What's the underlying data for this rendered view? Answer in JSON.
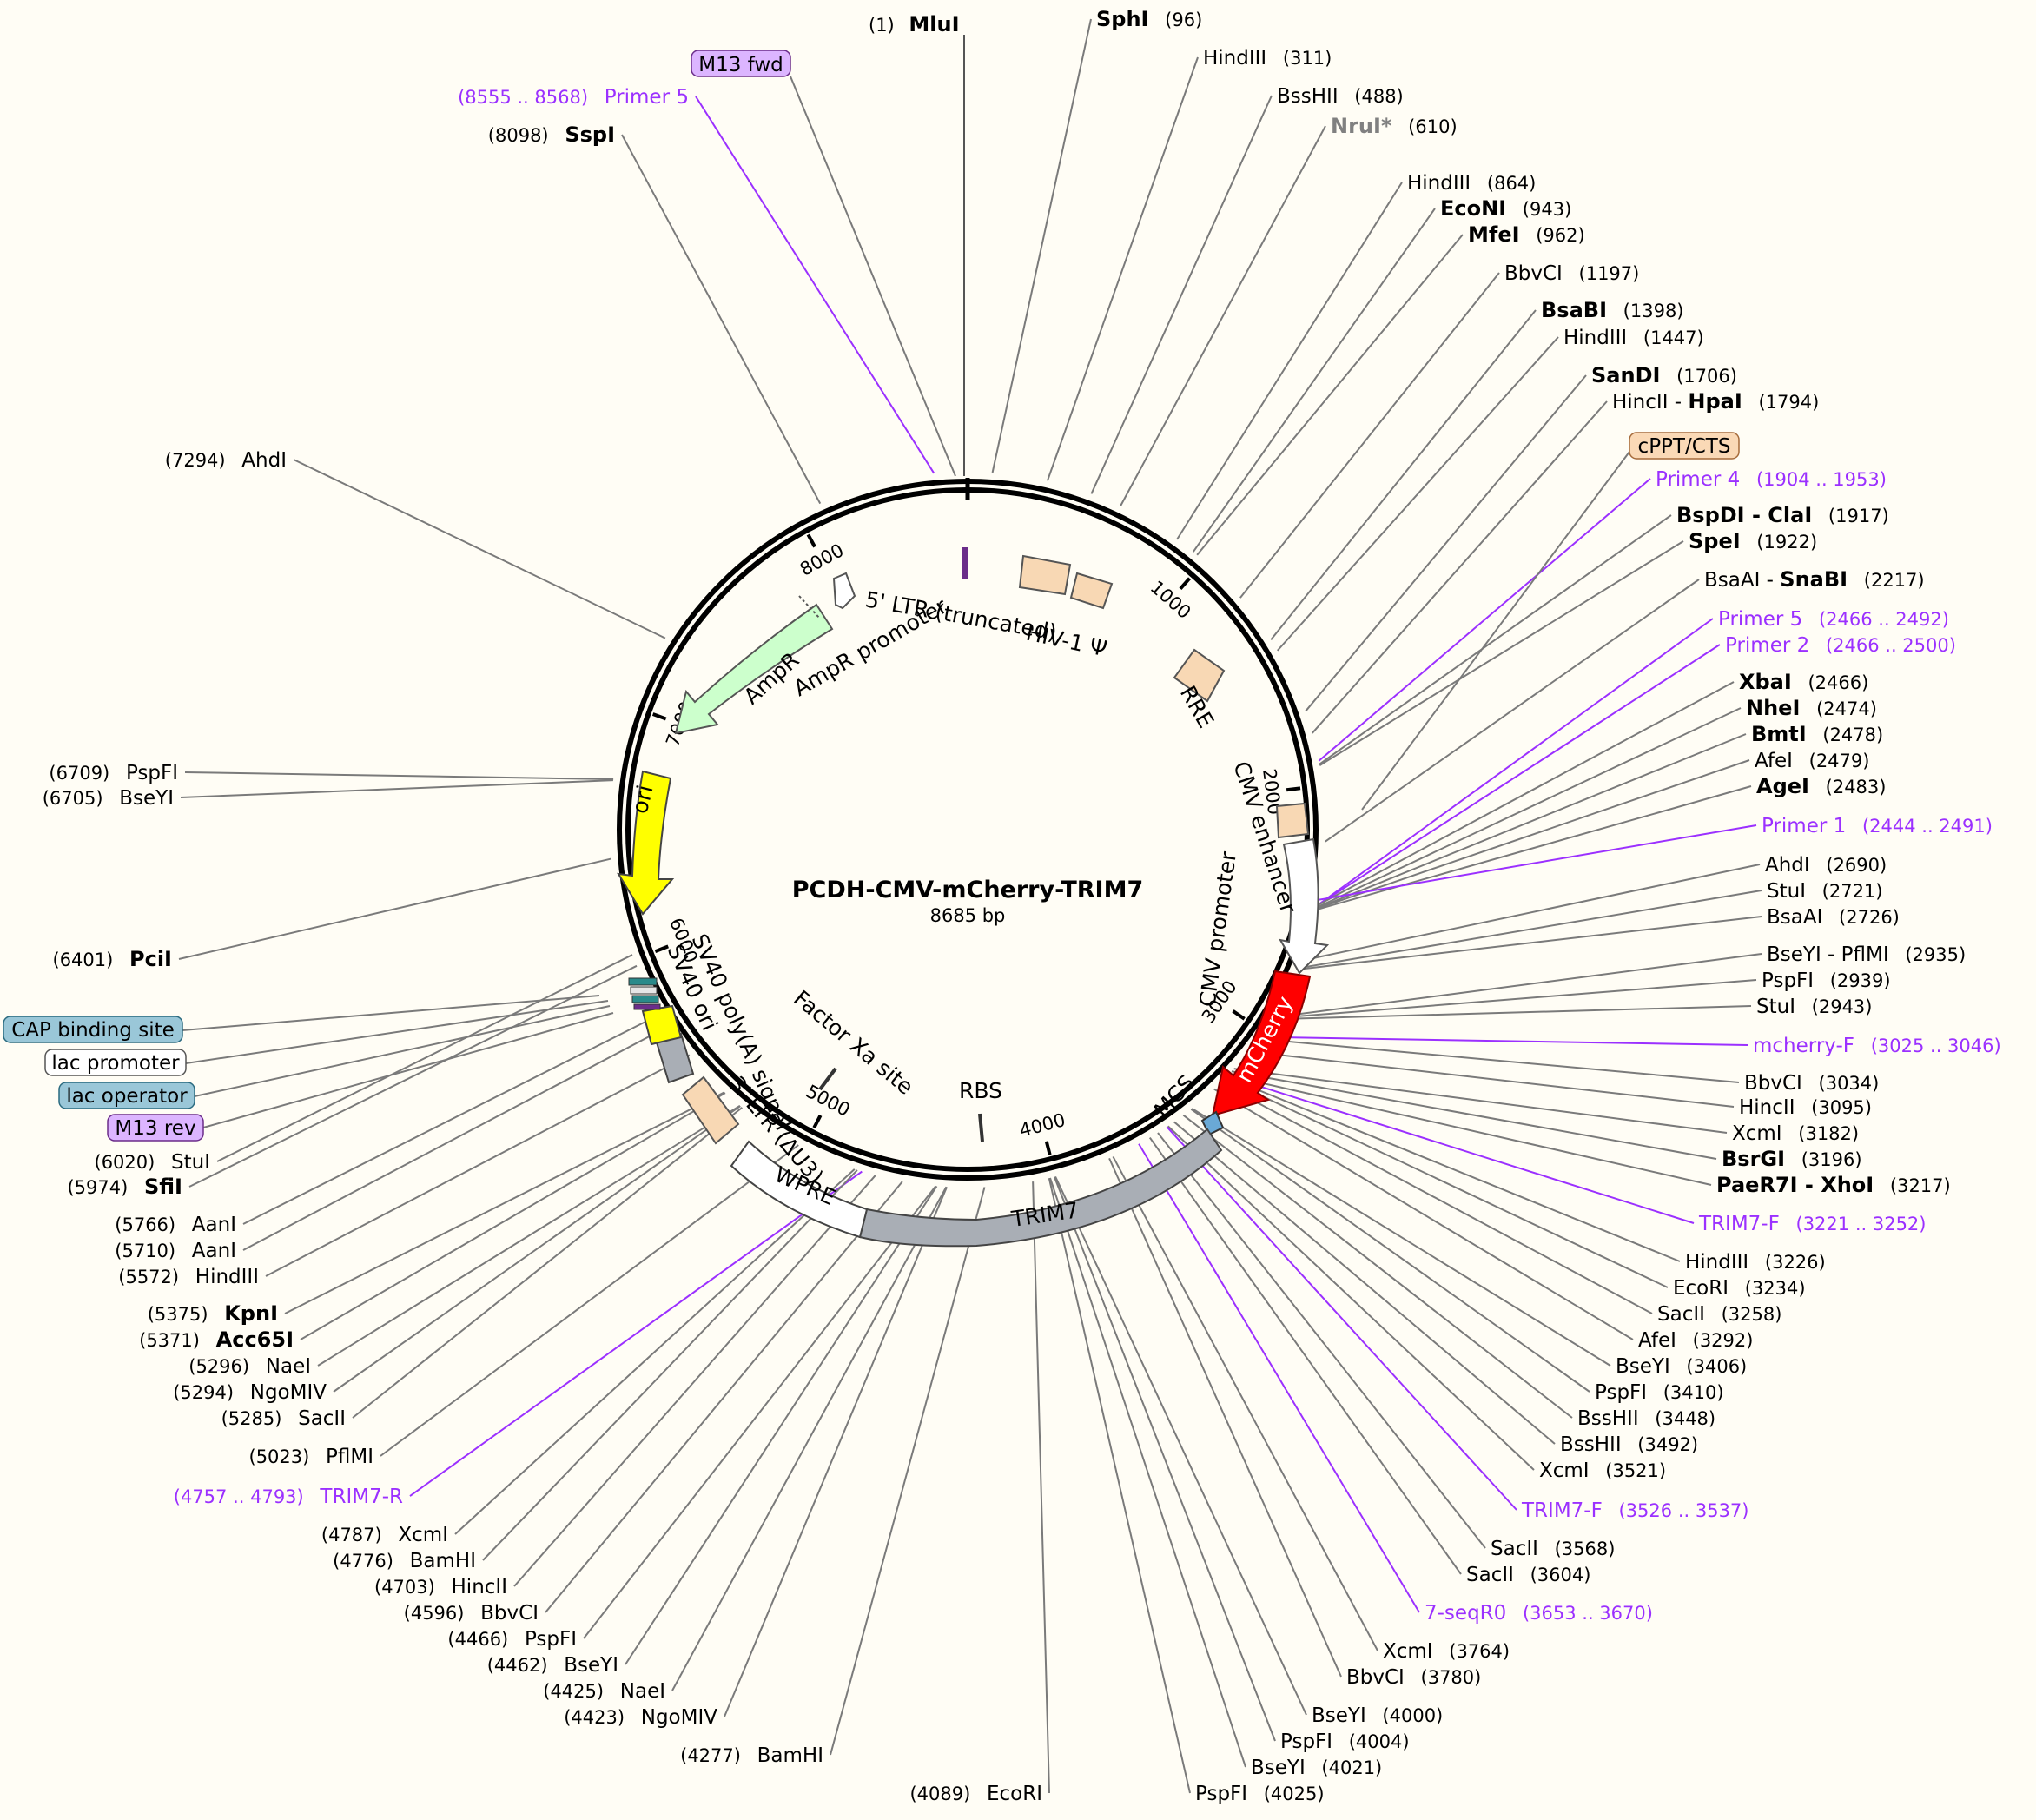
{
  "title": "PCDH-CMV-mCherry-TRIM7",
  "subtitle": "8685 bp",
  "colors": {
    "background": "#fffdf5",
    "enzyme_line": "#7a7a7a",
    "primer": "#9b30ff",
    "promoter": "#ffffff",
    "misc_feature": "#f8d8b4",
    "ori": "#ffff00",
    "AmpR": "#ccffcc",
    "mCherry": "#ff0000",
    "TRIM7": "#a9aeb5",
    "MCS": "#6aa9d6"
  },
  "ticks": [
    "1000",
    "2000",
    "3000",
    "4000",
    "5000",
    "6000",
    "7000",
    "8000"
  ],
  "boxed_labels": [
    {
      "text": "M13 fwd",
      "style": "purple"
    },
    {
      "text": "cPPT/CTS",
      "style": "orange"
    },
    {
      "text": "CAP binding site",
      "style": "blue"
    },
    {
      "text": "lac promoter",
      "style": "white"
    },
    {
      "text": "lac operator",
      "style": "blue"
    },
    {
      "text": "M13 rev",
      "style": "purple"
    }
  ],
  "features": [
    {
      "name": "5' LTR (truncated)"
    },
    {
      "name": "HIV-1 Ψ"
    },
    {
      "name": "RRE"
    },
    {
      "name": "CMV enhancer"
    },
    {
      "name": "CMV promoter"
    },
    {
      "name": "mCherry"
    },
    {
      "name": "MCS"
    },
    {
      "name": "TRIM7"
    },
    {
      "name": "WPRE"
    },
    {
      "name": "3' LTR (ΔU3)"
    },
    {
      "name": "SV40 poly(A) signal"
    },
    {
      "name": "SV40 ori"
    },
    {
      "name": "Factor Xa site"
    },
    {
      "name": "RBS"
    },
    {
      "name": "ori"
    },
    {
      "name": "AmpR"
    },
    {
      "name": "AmpR promoter"
    }
  ],
  "right_labels": [
    {
      "pos": "(1)",
      "name": "MluI",
      "bold": true,
      "order": "pos-first"
    },
    {
      "pos": "(96)",
      "name": "SphI",
      "bold": true
    },
    {
      "pos": "(311)",
      "name": "HindIII"
    },
    {
      "pos": "(488)",
      "name": "BssHII"
    },
    {
      "pos": "(610)",
      "name": "NruI*",
      "bold": true,
      "gray": true
    },
    {
      "pos": "(864)",
      "name": "HindIII"
    },
    {
      "pos": "(943)",
      "name": "EcoNI",
      "bold": true
    },
    {
      "pos": "(962)",
      "name": "MfeI",
      "bold": true
    },
    {
      "pos": "(1197)",
      "name": "BbvCI"
    },
    {
      "pos": "(1398)",
      "name": "BsaBI",
      "bold": true
    },
    {
      "pos": "(1447)",
      "name": "HindIII"
    },
    {
      "pos": "(1706)",
      "name": "SanDI",
      "bold": true
    },
    {
      "pos": "(1794)",
      "name": "HincII - ",
      "name2": "HpaI"
    },
    {
      "pos": "(1904 .. 1953)",
      "name": "Primer 4",
      "primer": true
    },
    {
      "pos": "(1917)",
      "name": "BspDI",
      "bold": true,
      "name2": " - ClaI"
    },
    {
      "pos": "(1922)",
      "name": "SpeI",
      "bold": true
    },
    {
      "pos": "(2217)",
      "name": "BsaAI - ",
      "name2": "SnaBI"
    },
    {
      "pos": "(2466 .. 2492)",
      "name": "Primer 5",
      "primer": true
    },
    {
      "pos": "(2466 .. 2500)",
      "name": "Primer 2",
      "primer": true
    },
    {
      "pos": "(2466)",
      "name": "XbaI",
      "bold": true
    },
    {
      "pos": "(2474)",
      "name": "NheI",
      "bold": true
    },
    {
      "pos": "(2478)",
      "name": "BmtI",
      "bold": true
    },
    {
      "pos": "(2479)",
      "name": "AfeI"
    },
    {
      "pos": "(2483)",
      "name": "AgeI",
      "bold": true
    },
    {
      "pos": "(2444 .. 2491)",
      "name": "Primer 1",
      "primer": true
    },
    {
      "pos": "(2690)",
      "name": "AhdI"
    },
    {
      "pos": "(2721)",
      "name": "StuI"
    },
    {
      "pos": "(2726)",
      "name": "BsaAI"
    },
    {
      "pos": "(2935)",
      "name": "BseYI - PflMI"
    },
    {
      "pos": "(2939)",
      "name": "PspFI"
    },
    {
      "pos": "(2943)",
      "name": "StuI"
    },
    {
      "pos": "(3025 .. 3046)",
      "name": "mcherry-F",
      "primer": true
    },
    {
      "pos": "(3034)",
      "name": "BbvCI"
    },
    {
      "pos": "(3095)",
      "name": "HincII"
    },
    {
      "pos": "(3182)",
      "name": "XcmI"
    },
    {
      "pos": "(3196)",
      "name": "BsrGI",
      "bold": true
    },
    {
      "pos": "(3217)",
      "name": "PaeR7I",
      "bold": true,
      "name2": " - XhoI"
    },
    {
      "pos": "(3221 .. 3252)",
      "name": "TRIM7-F",
      "primer": true
    },
    {
      "pos": "(3226)",
      "name": "HindIII"
    },
    {
      "pos": "(3234)",
      "name": "EcoRI"
    },
    {
      "pos": "(3258)",
      "name": "SacII"
    },
    {
      "pos": "(3292)",
      "name": "AfeI"
    },
    {
      "pos": "(3406)",
      "name": "BseYI"
    },
    {
      "pos": "(3410)",
      "name": "PspFI"
    },
    {
      "pos": "(3448)",
      "name": "BssHII"
    },
    {
      "pos": "(3492)",
      "name": "BssHII"
    },
    {
      "pos": "(3521)",
      "name": "XcmI"
    },
    {
      "pos": "(3526 .. 3537)",
      "name": "TRIM7-F",
      "primer": true
    },
    {
      "pos": "(3568)",
      "name": "SacII"
    },
    {
      "pos": "(3604)",
      "name": "SacII"
    },
    {
      "pos": "(3653 .. 3670)",
      "name": "7-seqR0",
      "primer": true
    },
    {
      "pos": "(3764)",
      "name": "XcmI"
    },
    {
      "pos": "(3780)",
      "name": "BbvCI"
    },
    {
      "pos": "(4000)",
      "name": "BseYI"
    },
    {
      "pos": "(4004)",
      "name": "PspFI"
    },
    {
      "pos": "(4021)",
      "name": "BseYI"
    },
    {
      "pos": "(4025)",
      "name": "PspFI"
    }
  ],
  "left_labels": [
    {
      "pos": "(8555 .. 8568)",
      "name": "Primer 5",
      "primer": true
    },
    {
      "pos": "(8098)",
      "name": "SspI",
      "bold": true
    },
    {
      "pos": "(7294)",
      "name": "AhdI"
    },
    {
      "pos": "(6709)",
      "name": "PspFI"
    },
    {
      "pos": "(6705)",
      "name": "BseYI"
    },
    {
      "pos": "(6401)",
      "name": "PciI",
      "bold": true
    },
    {
      "pos": "(6020)",
      "name": "StuI"
    },
    {
      "pos": "(5974)",
      "name": "SfiI",
      "bold": true
    },
    {
      "pos": "(5766)",
      "name": "AanI"
    },
    {
      "pos": "(5710)",
      "name": "AanI"
    },
    {
      "pos": "(5572)",
      "name": "HindIII"
    },
    {
      "pos": "(5375)",
      "name": "KpnI",
      "bold": true
    },
    {
      "pos": "(5371)",
      "name": "Acc65I",
      "bold": true
    },
    {
      "pos": "(5296)",
      "name": "NaeI"
    },
    {
      "pos": "(5294)",
      "name": "NgoMIV"
    },
    {
      "pos": "(5285)",
      "name": "SacII"
    },
    {
      "pos": "(5023)",
      "name": "PflMI"
    },
    {
      "pos": "(4757 .. 4793)",
      "name": "TRIM7-R",
      "primer": true
    },
    {
      "pos": "(4787)",
      "name": "XcmI"
    },
    {
      "pos": "(4776)",
      "name": "BamHI"
    },
    {
      "pos": "(4703)",
      "name": "HincII"
    },
    {
      "pos": "(4596)",
      "name": "BbvCI"
    },
    {
      "pos": "(4466)",
      "name": "PspFI"
    },
    {
      "pos": "(4462)",
      "name": "BseYI"
    },
    {
      "pos": "(4425)",
      "name": "NaeI"
    },
    {
      "pos": "(4423)",
      "name": "NgoMIV"
    },
    {
      "pos": "(4277)",
      "name": "BamHI"
    },
    {
      "pos": "(4089)",
      "name": "EcoRI"
    }
  ]
}
